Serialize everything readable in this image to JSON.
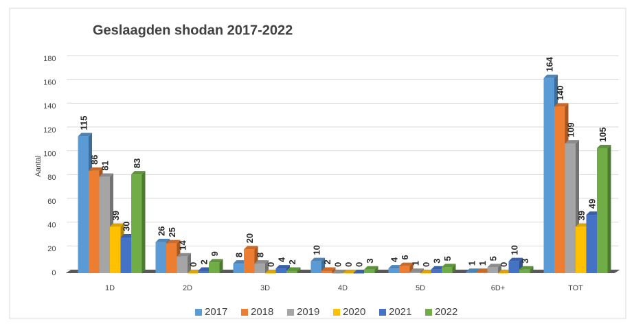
{
  "chart_data": {
    "type": "bar",
    "title": "Geslaagden shodan 2017-2022",
    "y_label": "Aantal",
    "categories": [
      "1D",
      "2D",
      "3D",
      "4D",
      "5D",
      "6D+",
      "TOT"
    ],
    "series": [
      {
        "name": "2017",
        "color": "#5b9bd5",
        "values": [
          115,
          26,
          8,
          10,
          4,
          1,
          164
        ]
      },
      {
        "name": "2018",
        "color": "#ed7d31",
        "values": [
          86,
          25,
          20,
          2,
          6,
          1,
          140
        ]
      },
      {
        "name": "2019",
        "color": "#a5a5a5",
        "values": [
          81,
          14,
          8,
          0,
          1,
          5,
          109
        ]
      },
      {
        "name": "2020",
        "color": "#ffc000",
        "values": [
          39,
          0,
          0,
          0,
          0,
          0,
          39
        ]
      },
      {
        "name": "2021",
        "color": "#4472c4",
        "values": [
          30,
          2,
          4,
          0,
          3,
          10,
          49
        ]
      },
      {
        "name": "2022",
        "color": "#70ad47",
        "values": [
          83,
          9,
          2,
          3,
          5,
          3,
          105
        ]
      }
    ],
    "ylim": [
      0,
      180
    ],
    "yticks": [
      0,
      20,
      40,
      60,
      80,
      100,
      120,
      140,
      160,
      180
    ],
    "grid": true,
    "legend": "bottom"
  }
}
